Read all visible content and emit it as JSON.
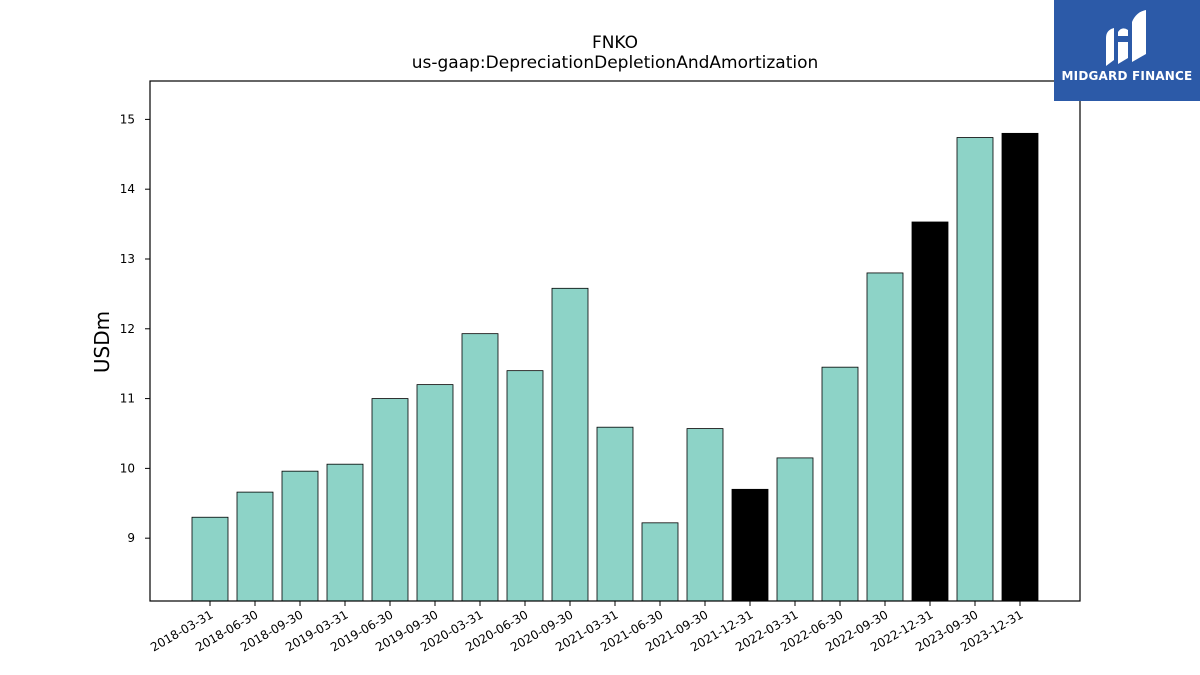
{
  "chart_data": {
    "type": "bar",
    "title": "FNKO",
    "subtitle": "us-gaap:DepreciationDepletionAndAmortization",
    "xlabel": "",
    "ylabel": "USDm",
    "ylim": [
      8.1,
      15.55
    ],
    "yticks": [
      9,
      10,
      11,
      12,
      13,
      14,
      15
    ],
    "grid": false,
    "categories": [
      "2018-03-31",
      "2018-06-30",
      "2018-09-30",
      "2019-03-31",
      "2019-06-30",
      "2019-09-30",
      "2020-03-31",
      "2020-06-30",
      "2020-09-30",
      "2021-03-31",
      "2021-06-30",
      "2021-09-30",
      "2021-12-31",
      "2022-03-31",
      "2022-06-30",
      "2022-09-30",
      "2022-12-31",
      "2023-09-30",
      "2023-12-31"
    ],
    "values": [
      9.3,
      9.66,
      9.96,
      10.06,
      11.0,
      11.2,
      11.93,
      11.4,
      12.58,
      10.59,
      9.22,
      10.57,
      9.7,
      10.15,
      11.45,
      12.8,
      13.53,
      14.74,
      14.8
    ],
    "highlight": [
      false,
      false,
      false,
      false,
      false,
      false,
      false,
      false,
      false,
      false,
      false,
      false,
      true,
      false,
      false,
      false,
      true,
      false,
      true
    ],
    "colors": {
      "normal": "#8dd3c7",
      "highlight": "#000000",
      "edge": "#000000"
    }
  },
  "logo": {
    "text": "MIDGARD FINANCE",
    "background": "#2c5aa8"
  }
}
